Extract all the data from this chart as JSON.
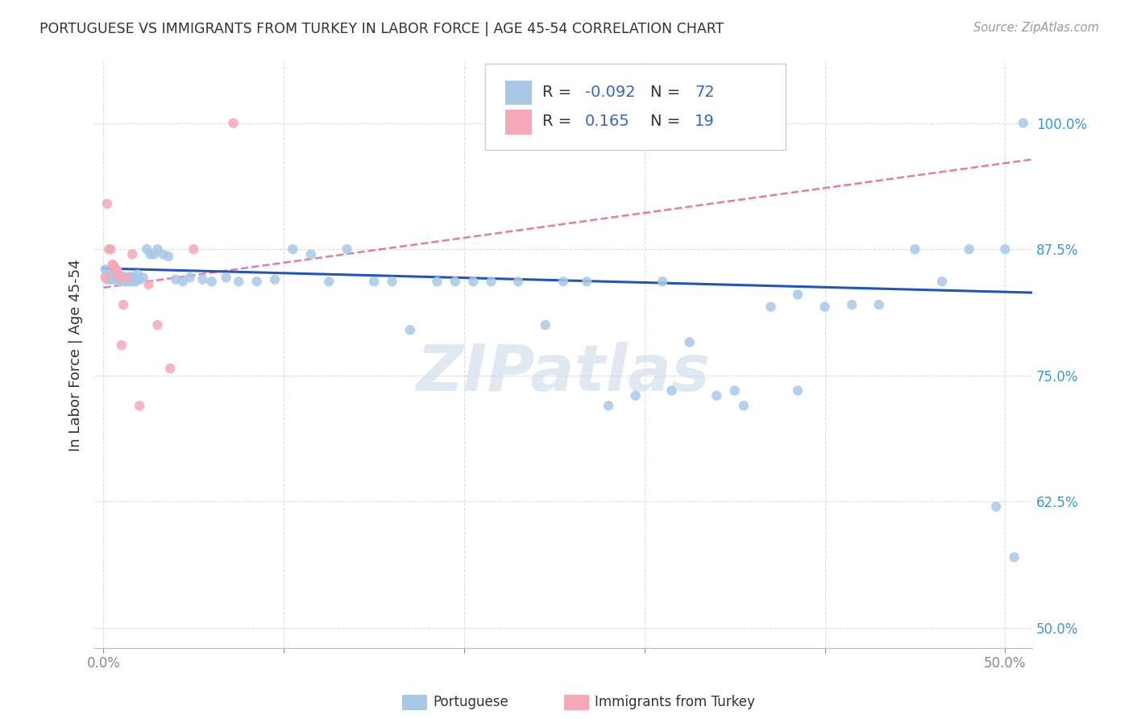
{
  "title": "PORTUGUESE VS IMMIGRANTS FROM TURKEY IN LABOR FORCE | AGE 45-54 CORRELATION CHART",
  "source": "Source: ZipAtlas.com",
  "ylabel": "In Labor Force | Age 45-54",
  "xlim": [
    -0.005,
    0.515
  ],
  "ylim": [
    0.48,
    1.06
  ],
  "xtick_positions": [
    0.0,
    0.1,
    0.2,
    0.3,
    0.4,
    0.5
  ],
  "xticklabels": [
    "0.0%",
    "",
    "",
    "",
    "",
    "50.0%"
  ],
  "ytick_positions": [
    0.5,
    0.625,
    0.75,
    0.875,
    1.0
  ],
  "yticklabels": [
    "50.0%",
    "62.5%",
    "75.0%",
    "87.5%",
    "100.0%"
  ],
  "blue_R": "-0.092",
  "blue_N": "72",
  "pink_R": "0.165",
  "pink_N": "19",
  "blue_color": "#a8c8e8",
  "pink_color": "#f4a8b8",
  "blue_line_color": "#2255bb",
  "pink_line_color": "#dd4477",
  "watermark": "ZIPatlas",
  "blue_points_x": [
    0.001,
    0.002,
    0.003,
    0.004,
    0.005,
    0.006,
    0.007,
    0.008,
    0.009,
    0.01,
    0.011,
    0.012,
    0.013,
    0.014,
    0.015,
    0.016,
    0.017,
    0.018,
    0.019,
    0.02,
    0.022,
    0.024,
    0.026,
    0.028,
    0.03,
    0.033,
    0.036,
    0.04,
    0.044,
    0.048,
    0.055,
    0.06,
    0.068,
    0.075,
    0.085,
    0.095,
    0.105,
    0.115,
    0.125,
    0.135,
    0.15,
    0.16,
    0.17,
    0.185,
    0.195,
    0.205,
    0.215,
    0.23,
    0.245,
    0.255,
    0.268,
    0.28,
    0.295,
    0.31,
    0.325,
    0.34,
    0.355,
    0.37,
    0.385,
    0.4,
    0.415,
    0.43,
    0.45,
    0.465,
    0.48,
    0.495,
    0.505,
    0.51,
    0.315,
    0.35,
    0.385,
    0.5
  ],
  "blue_points_y": [
    0.855,
    0.845,
    0.85,
    0.845,
    0.85,
    0.845,
    0.855,
    0.848,
    0.843,
    0.845,
    0.848,
    0.843,
    0.847,
    0.843,
    0.848,
    0.843,
    0.847,
    0.843,
    0.85,
    0.845,
    0.847,
    0.875,
    0.87,
    0.87,
    0.875,
    0.87,
    0.868,
    0.845,
    0.843,
    0.847,
    0.845,
    0.843,
    0.847,
    0.843,
    0.843,
    0.845,
    0.875,
    0.87,
    0.843,
    0.875,
    0.843,
    0.843,
    0.795,
    0.843,
    0.843,
    0.843,
    0.843,
    0.843,
    0.8,
    0.843,
    0.843,
    0.72,
    0.73,
    0.843,
    0.783,
    0.73,
    0.72,
    0.818,
    0.83,
    0.818,
    0.82,
    0.82,
    0.875,
    0.843,
    0.875,
    0.62,
    0.57,
    1.0,
    0.735,
    0.735,
    0.735,
    0.875
  ],
  "pink_points_x": [
    0.001,
    0.002,
    0.003,
    0.004,
    0.005,
    0.006,
    0.007,
    0.008,
    0.009,
    0.01,
    0.011,
    0.013,
    0.016,
    0.02,
    0.025,
    0.03,
    0.037,
    0.05,
    0.072
  ],
  "pink_points_y": [
    0.847,
    0.92,
    0.875,
    0.875,
    0.86,
    0.858,
    0.853,
    0.853,
    0.847,
    0.78,
    0.82,
    0.847,
    0.87,
    0.72,
    0.84,
    0.8,
    0.757,
    0.875,
    1.0
  ],
  "blue_trend_x": [
    0.0,
    0.515
  ],
  "blue_trend_y": [
    0.856,
    0.832
  ],
  "pink_trend_x": [
    0.0,
    0.515
  ],
  "pink_trend_y": [
    0.837,
    0.964
  ],
  "figsize": [
    14.06,
    8.92
  ],
  "dpi": 100
}
